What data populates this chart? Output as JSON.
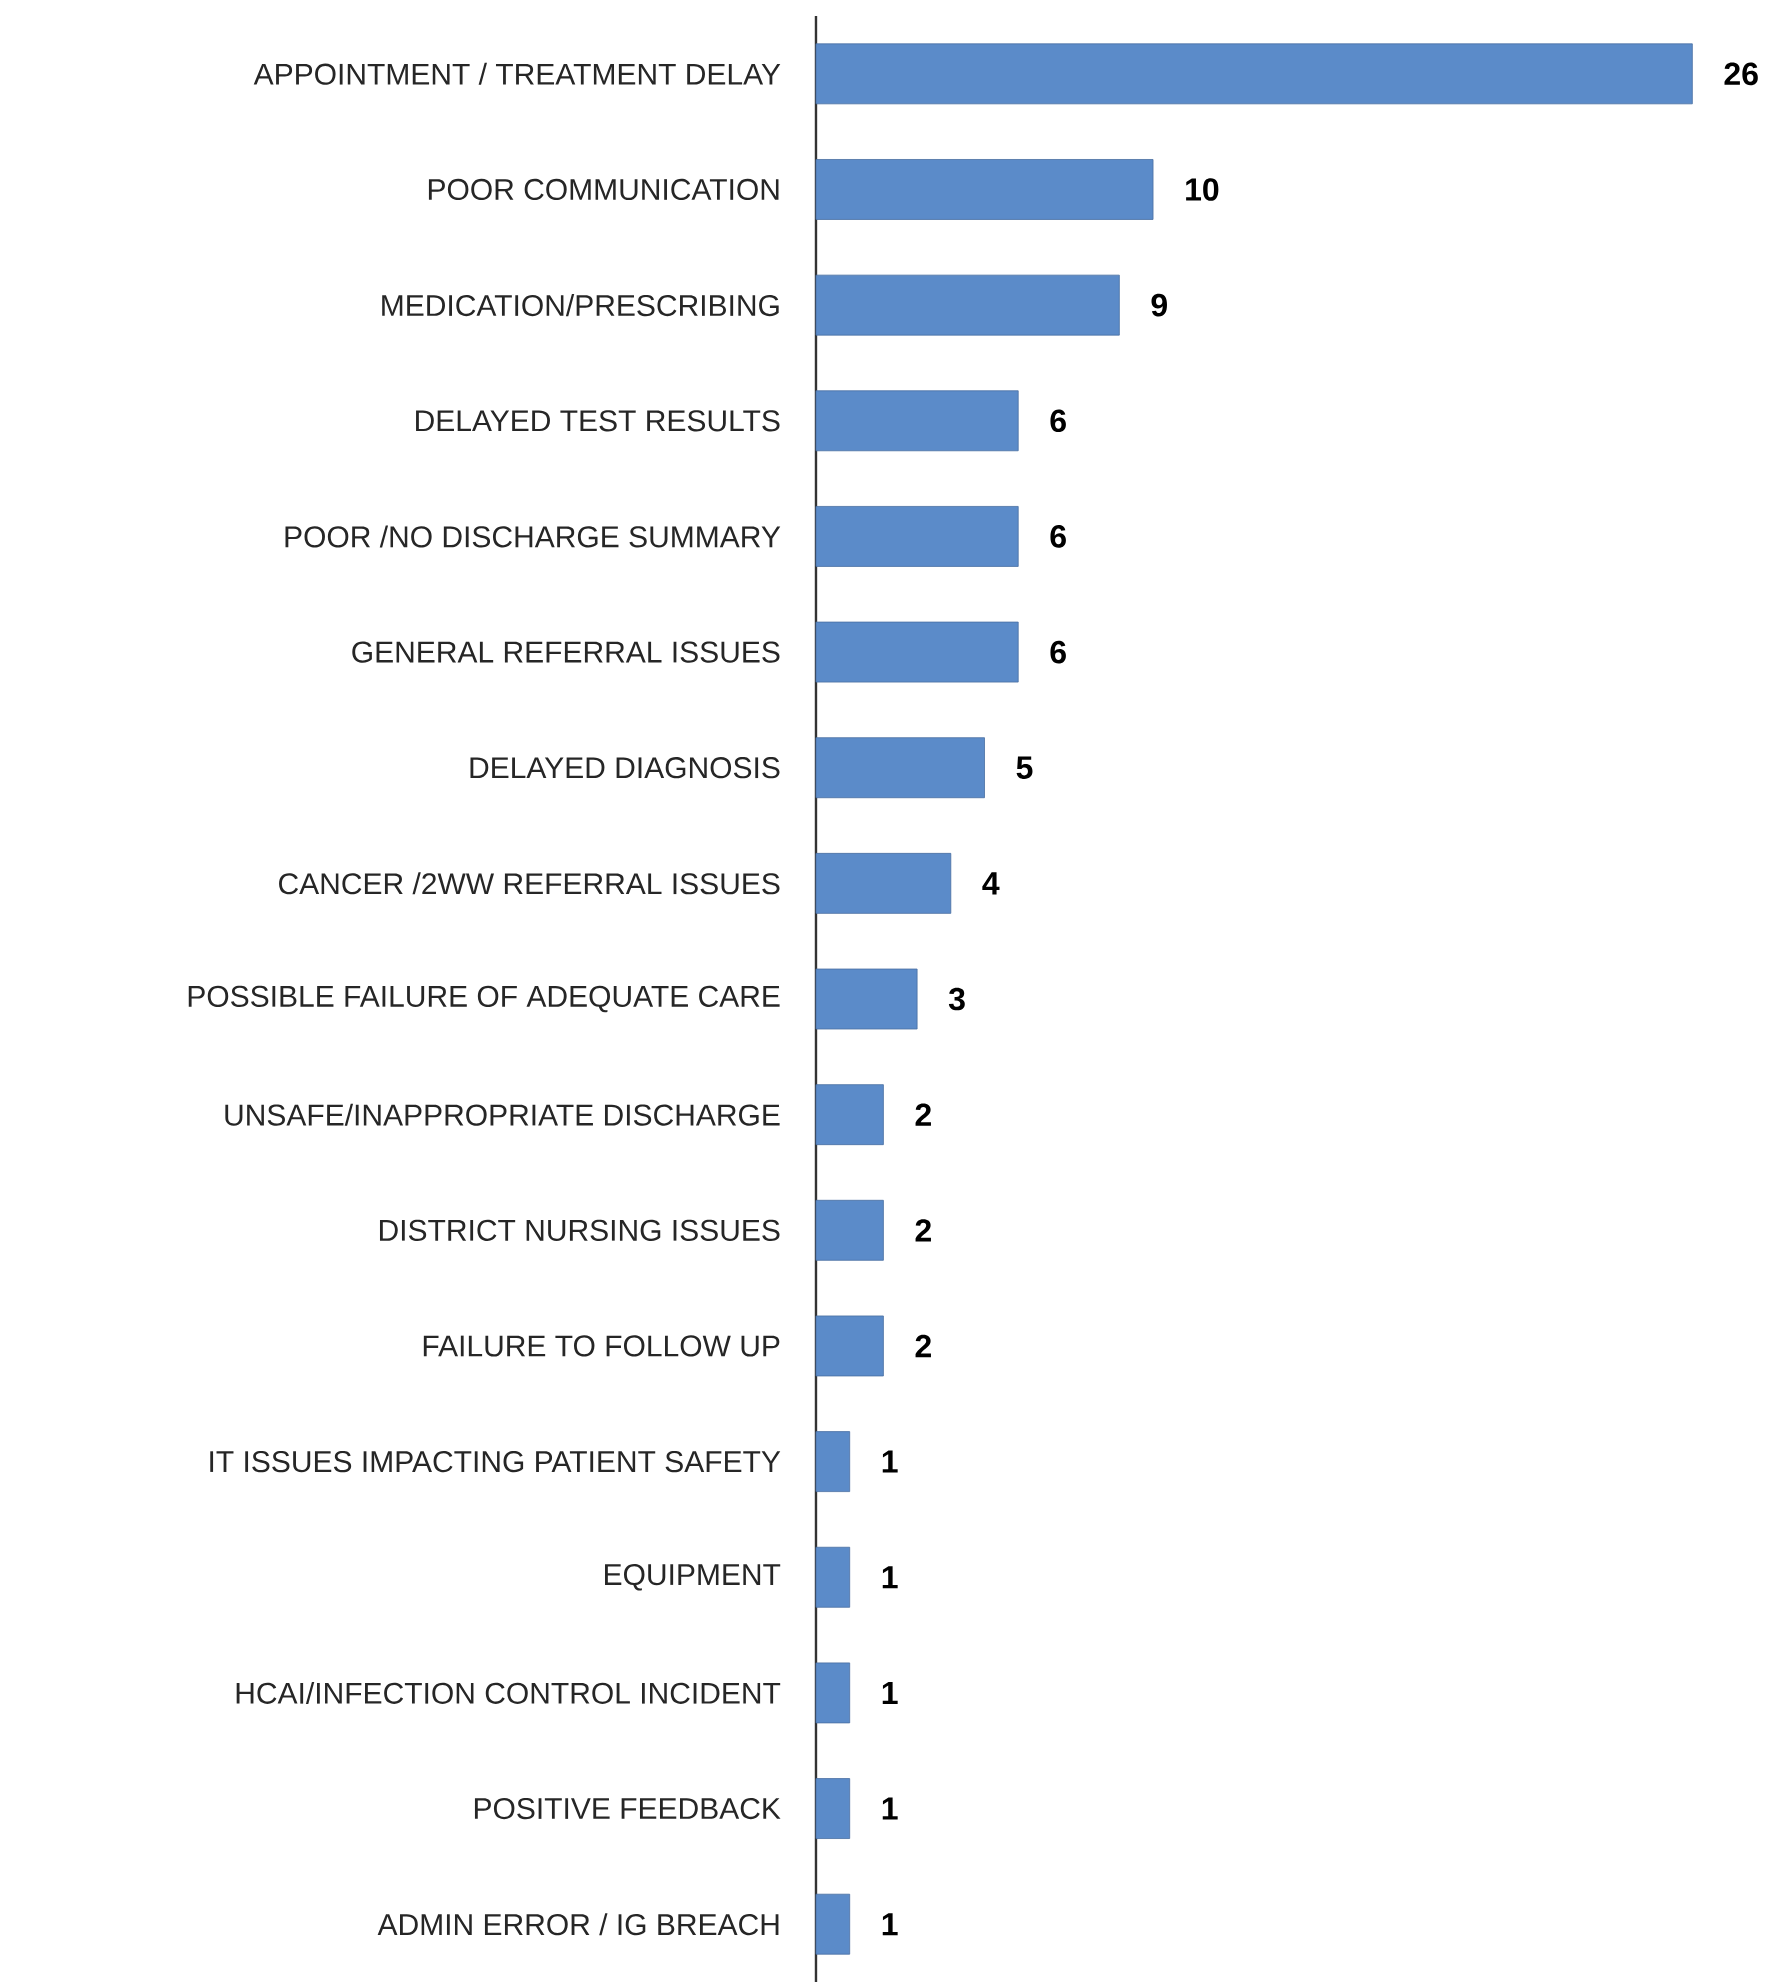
{
  "chart_data": {
    "type": "bar",
    "orientation": "horizontal",
    "categories": [
      "APPOINTMENT / TREATMENT DELAY",
      "POOR COMMUNICATION",
      "MEDICATION/PRESCRIBING",
      "DELAYED TEST RESULTS",
      "POOR /NO DISCHARGE SUMMARY",
      "GENERAL REFERRAL ISSUES",
      "DELAYED DIAGNOSIS",
      "CANCER /2WW REFERRAL ISSUES",
      "POSSIBLE FAILURE OF ADEQUATE CARE",
      "UNSAFE/INAPPROPRIATE DISCHARGE",
      "DISTRICT NURSING ISSUES",
      "FAILURE TO FOLLOW UP",
      "IT ISSUES IMPACTING PATIENT SAFETY",
      "EQUIPMENT",
      "HCAI/INFECTION CONTROL INCIDENT",
      "POSITIVE FEEDBACK",
      "ADMIN ERROR / IG BREACH"
    ],
    "values": [
      26,
      10,
      9,
      6,
      6,
      6,
      5,
      4,
      3,
      2,
      2,
      2,
      1,
      1,
      1,
      1,
      1
    ],
    "color": "#5b8bc9",
    "data_labels": true,
    "tick_labels": "y"
  }
}
